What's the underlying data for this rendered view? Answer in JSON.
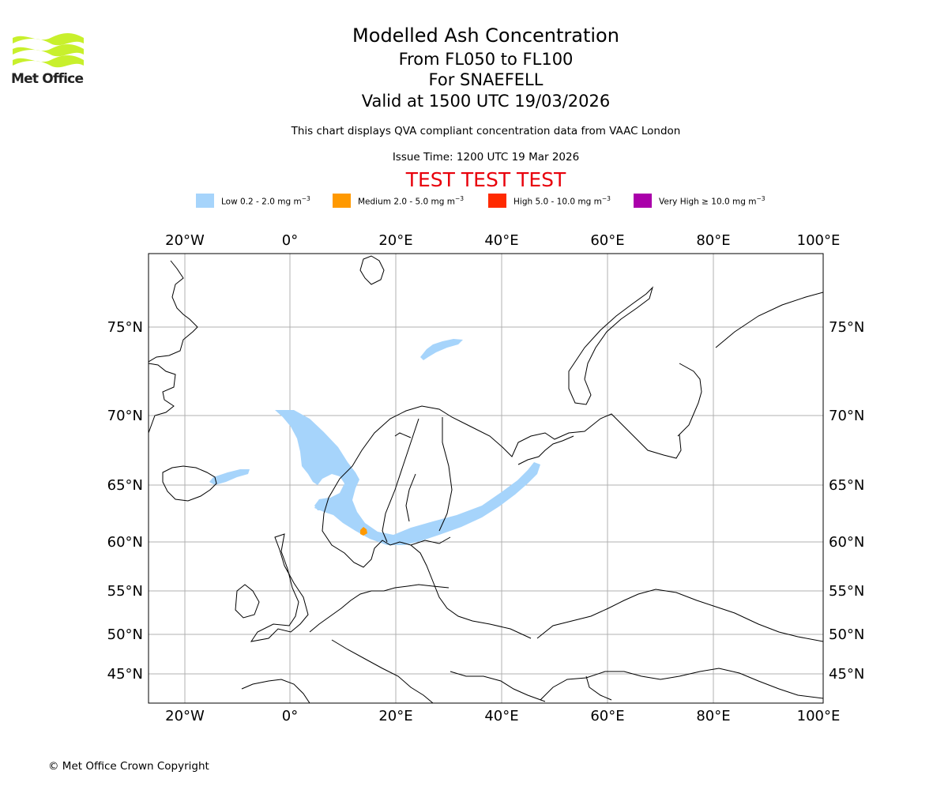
{
  "header": {
    "logo_text": "Met Office",
    "title": "Modelled Ash Concentration",
    "level_range": "From FL050 to FL100",
    "volcano": "For SNAEFELL",
    "valid": "Valid at 1500 UTC 19/03/2026",
    "description": "This chart displays QVA compliant concentration data from VAAC London",
    "issue_time": "Issue Time: 1200 UTC 19 Mar 2026",
    "test_banner": "TEST TEST TEST"
  },
  "legend": [
    {
      "label": "Low 0.2 - 2.0 mg m",
      "exp": "−3",
      "color": "#a6d4fb"
    },
    {
      "label": "Medium 2.0 - 5.0 mg m",
      "exp": "−3",
      "color": "#ff9900"
    },
    {
      "label": "High 5.0 - 10.0 mg m",
      "exp": "−3",
      "color": "#ff2a00"
    },
    {
      "label": "Very High  ≥  10.0 mg m",
      "exp": "−3",
      "color": "#aa00aa"
    }
  ],
  "map": {
    "lon_labels": [
      "20°W",
      "0°",
      "20°E",
      "40°E",
      "60°E",
      "80°E",
      "100°E"
    ],
    "lat_labels": [
      "75°N",
      "70°N",
      "65°N",
      "60°N",
      "55°N",
      "50°N",
      "45°N"
    ],
    "grid": true,
    "gridline_color": "#b0b0b0"
  },
  "footer": {
    "copyright": "© Met Office Crown Copyright"
  }
}
